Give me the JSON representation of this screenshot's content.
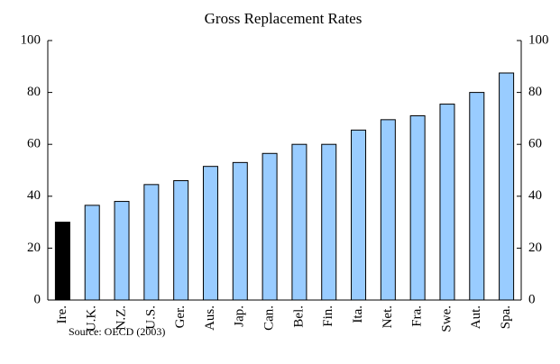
{
  "chart_data": {
    "type": "bar",
    "title": "Gross Replacement Rates",
    "categories": [
      "Ire.",
      "U.K.",
      "N.Z.",
      "U.S.",
      "Ger.",
      "Aus.",
      "Jap.",
      "Can.",
      "Bel.",
      "Fin.",
      "Ita.",
      "Net.",
      "Fra.",
      "Swe.",
      "Aut.",
      "Spa."
    ],
    "values": [
      30,
      36.5,
      38,
      44.5,
      46,
      51.5,
      53,
      56.5,
      60,
      60,
      65.5,
      69.5,
      71,
      75.5,
      80,
      87.5
    ],
    "colors": [
      "#000000",
      "#99ccff",
      "#99ccff",
      "#99ccff",
      "#99ccff",
      "#99ccff",
      "#99ccff",
      "#99ccff",
      "#99ccff",
      "#99ccff",
      "#99ccff",
      "#99ccff",
      "#99ccff",
      "#99ccff",
      "#99ccff",
      "#99ccff"
    ],
    "ylim": [
      0,
      100
    ],
    "yticks": [
      0,
      20,
      40,
      60,
      80,
      100
    ],
    "y2lim": [
      0,
      100
    ],
    "y2ticks": [
      0,
      20,
      40,
      60,
      80,
      100
    ],
    "source": "Source: OECD (2003)"
  }
}
